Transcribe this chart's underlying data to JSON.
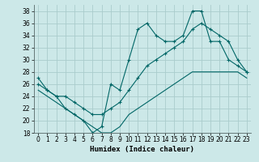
{
  "xlabel": "Humidex (Indice chaleur)",
  "background_color": "#cce8e8",
  "grid_color": "#aacccc",
  "line_color": "#006666",
  "xlim": [
    -0.5,
    23.5
  ],
  "ylim": [
    18,
    39
  ],
  "xticks": [
    0,
    1,
    2,
    3,
    4,
    5,
    6,
    7,
    8,
    9,
    10,
    11,
    12,
    13,
    14,
    15,
    16,
    17,
    18,
    19,
    20,
    21,
    22,
    23
  ],
  "yticks": [
    18,
    20,
    22,
    24,
    26,
    28,
    30,
    32,
    34,
    36,
    38
  ],
  "series1_x": [
    0,
    1,
    2,
    3,
    4,
    5,
    6,
    7,
    8,
    9,
    10,
    11,
    12,
    13,
    14,
    15,
    16,
    17,
    18,
    19,
    20,
    21,
    22,
    23
  ],
  "series1_y": [
    27,
    25,
    24,
    22,
    21,
    20,
    18,
    19,
    26,
    25,
    30,
    35,
    36,
    34,
    33,
    33,
    34,
    38,
    38,
    33,
    33,
    30,
    29,
    28
  ],
  "series2_x": [
    0,
    1,
    2,
    3,
    4,
    5,
    6,
    7,
    8,
    9,
    10,
    11,
    12,
    13,
    14,
    15,
    16,
    17,
    18,
    19,
    20,
    21,
    22,
    23
  ],
  "series2_y": [
    26,
    25,
    24,
    24,
    23,
    22,
    21,
    21,
    22,
    23,
    25,
    27,
    29,
    30,
    31,
    32,
    33,
    35,
    36,
    35,
    34,
    33,
    30,
    28
  ],
  "series3_x": [
    0,
    1,
    2,
    3,
    4,
    5,
    6,
    7,
    8,
    9,
    10,
    11,
    12,
    13,
    14,
    15,
    16,
    17,
    18,
    19,
    20,
    21,
    22,
    23
  ],
  "series3_y": [
    25,
    24,
    23,
    22,
    21,
    20,
    19,
    18,
    18,
    19,
    21,
    22,
    23,
    24,
    25,
    26,
    27,
    28,
    28,
    28,
    28,
    28,
    28,
    27
  ]
}
